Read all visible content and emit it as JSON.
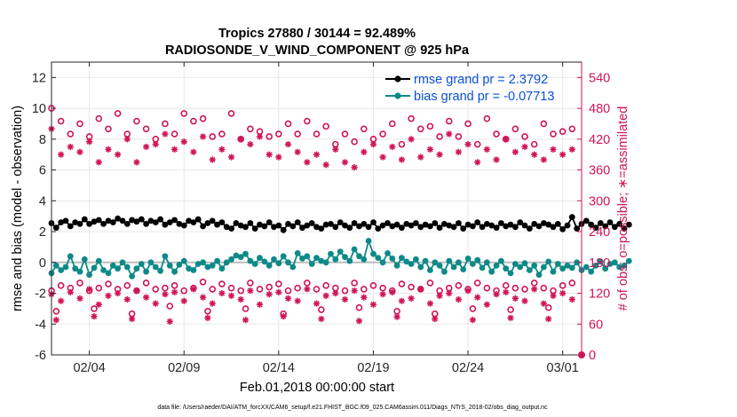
{
  "colors": {
    "rmse": "#000000",
    "bias": "#0d8a88",
    "obs": "#d01458",
    "legend_text": "#0a4fd6",
    "zero_line": "#bdbdbd",
    "grid": "#e8e8e8"
  },
  "chart_data": {
    "type": "line",
    "title": "Tropics 27880 / 30144 = 92.489%",
    "subtitle": "RADIOSONDE_V_WIND_COMPONENT @ 925 hPa",
    "xlabel": "Feb.01,2018 00:00:00 start",
    "ylabel_left": "rmse and bias (model - observation)",
    "ylabel_right": "# of obs: o=possible; ∗=assimilated",
    "footnote": "data file: /Users/raeder/DAI/ATM_forcXX/CAM6_setup/f.e21.FHIST_BGC.f09_025.CAM6assim.011/Diags_NTrS_2018-02/obs_diag_output.nc",
    "xlim": [
      1,
      29
    ],
    "ylim_left": [
      -6,
      13
    ],
    "ylim_right": [
      0,
      570
    ],
    "x_ticks": [
      3,
      8,
      13,
      18,
      23,
      28
    ],
    "x_tick_labels": [
      "02/04",
      "02/09",
      "02/14",
      "02/19",
      "02/24",
      "03/01"
    ],
    "y_left_ticks": [
      -6,
      -4,
      -2,
      0,
      2,
      4,
      6,
      8,
      10,
      12
    ],
    "y_left_tick_labels": [
      "-6",
      "-4",
      "-2",
      "0",
      "2",
      "4",
      "6",
      "8",
      "10",
      "12"
    ],
    "y_right_ticks": [
      0,
      60,
      120,
      180,
      240,
      300,
      360,
      420,
      480,
      540
    ],
    "y_right_tick_labels": [
      "0",
      "60",
      "120",
      "180",
      "240",
      "300",
      "360",
      "420",
      "480",
      "540"
    ],
    "grid": true,
    "legend": {
      "location": "top-right",
      "entries": [
        "rmse grand pr = 2.3792",
        "bias grand pr = -0.07713"
      ]
    },
    "series": [
      {
        "name": "rmse",
        "axis": "left",
        "marker": "filled-circle",
        "x_start": 1.0,
        "x_step": 0.25,
        "values": [
          2.55,
          2.25,
          2.6,
          2.7,
          2.35,
          2.6,
          2.5,
          2.8,
          2.5,
          2.65,
          2.75,
          2.5,
          2.7,
          2.6,
          2.85,
          2.7,
          2.5,
          2.75,
          2.65,
          2.8,
          2.5,
          2.7,
          2.6,
          2.8,
          2.45,
          2.6,
          2.75,
          2.5,
          2.4,
          2.7,
          2.6,
          2.8,
          2.35,
          2.55,
          2.7,
          2.45,
          2.6,
          2.3,
          2.2,
          2.55,
          2.4,
          2.3,
          2.55,
          2.2,
          2.45,
          2.35,
          2.6,
          2.3,
          2.4,
          2.1,
          2.5,
          2.35,
          2.6,
          2.25,
          2.4,
          2.55,
          2.3,
          2.2,
          2.45,
          2.5,
          2.3,
          2.6,
          2.4,
          2.25,
          2.55,
          2.35,
          2.5,
          2.3,
          2.6,
          2.2,
          2.4,
          2.55,
          2.35,
          2.45,
          2.25,
          2.5,
          2.4,
          2.55,
          2.3,
          2.45,
          2.35,
          2.55,
          2.25,
          2.5,
          2.4,
          2.3,
          2.55,
          2.2,
          2.45,
          2.35,
          2.6,
          2.3,
          2.5,
          2.4,
          2.25,
          2.55,
          2.35,
          2.45,
          2.3,
          2.6,
          2.4,
          2.2,
          2.5,
          2.35,
          2.55,
          2.45,
          2.3,
          2.5,
          2.15,
          2.4,
          2.95,
          2.2,
          2.5,
          2.7,
          2.45,
          2.25,
          2.55,
          2.35,
          2.6,
          2.3,
          2.5,
          2.2,
          2.45
        ]
      },
      {
        "name": "bias",
        "axis": "left",
        "marker": "filled-circle",
        "x_start": 1.0,
        "x_step": 0.25,
        "values": [
          -0.7,
          -0.2,
          -0.5,
          -0.3,
          0.4,
          -0.4,
          -0.6,
          0.2,
          -0.8,
          -0.35,
          0.1,
          -0.5,
          -0.7,
          -0.2,
          -0.4,
          0.0,
          -0.3,
          -0.9,
          -0.4,
          -0.1,
          -0.6,
          0.0,
          -0.3,
          -0.55,
          0.4,
          -0.2,
          -0.6,
          -0.15,
          0.1,
          -0.4,
          -0.5,
          -0.1,
          0.0,
          -0.3,
          -0.2,
          0.1,
          -0.4,
          0.0,
          0.2,
          0.45,
          0.35,
          0.55,
          0.1,
          -0.1,
          0.3,
          0.05,
          -0.2,
          0.2,
          -0.05,
          0.4,
          0.0,
          -0.3,
          0.6,
          0.25,
          0.4,
          -0.1,
          0.3,
          0.1,
          0.0,
          0.55,
          0.2,
          0.7,
          0.35,
          0.1,
          0.85,
          0.4,
          0.2,
          1.4,
          0.55,
          0.3,
          0.0,
          0.6,
          0.25,
          -0.2,
          0.3,
          0.05,
          -0.1,
          0.2,
          -0.3,
          0.1,
          -0.5,
          0.0,
          -0.2,
          -0.6,
          0.1,
          -0.3,
          0.0,
          -0.45,
          0.25,
          -0.1,
          0.15,
          -0.35,
          0.0,
          -0.6,
          -0.2,
          0.1,
          -0.4,
          -0.7,
          -0.1,
          -0.3,
          -0.05,
          -0.5,
          -0.2,
          -0.8,
          -0.3,
          0.05,
          -0.6,
          -0.1,
          -0.4,
          -0.2,
          -0.35,
          0.0,
          -0.5,
          -0.3,
          -0.6,
          -0.2,
          0.05,
          -0.4,
          -0.1,
          0.0,
          -0.3,
          -0.2,
          0.1
        ]
      },
      {
        "name": "possible (upper)",
        "axis": "right",
        "marker": "open-circle",
        "x": [
          1,
          1.5,
          2,
          2.5,
          3,
          3.5,
          4,
          4.5,
          5,
          5.5,
          6,
          6.5,
          7,
          7.5,
          8,
          8.5,
          9,
          9.5,
          10,
          10.5,
          11,
          11.5,
          12,
          12.5,
          13,
          13.5,
          14,
          14.5,
          15,
          15.5,
          16,
          16.5,
          17,
          17.5,
          18,
          18.5,
          19,
          19.5,
          20,
          20.5,
          21,
          21.5,
          22,
          22.5,
          23,
          23.5,
          24,
          24.5,
          25,
          25.5,
          26,
          26.5,
          27,
          27.5,
          28,
          28.5
        ],
        "values": [
          480,
          455,
          430,
          450,
          425,
          460,
          440,
          470,
          430,
          455,
          440,
          420,
          450,
          430,
          470,
          455,
          460,
          425,
          430,
          470,
          420,
          440,
          435,
          425,
          430,
          450,
          430,
          455,
          430,
          445,
          410,
          430,
          415,
          440,
          420,
          430,
          450,
          410,
          460,
          440,
          445,
          425,
          455,
          425,
          450,
          410,
          460,
          430,
          420,
          440,
          425,
          410,
          450,
          430,
          435,
          440
        ]
      },
      {
        "name": "assimilated (upper)",
        "axis": "right",
        "marker": "asterisk",
        "x": [
          1,
          1.5,
          2,
          2.5,
          3,
          3.5,
          4,
          4.5,
          5,
          5.5,
          6,
          6.5,
          7,
          7.5,
          8,
          8.5,
          9,
          9.5,
          10,
          10.5,
          11,
          11.5,
          12,
          12.5,
          13,
          13.5,
          14,
          14.5,
          15,
          15.5,
          16,
          16.5,
          17,
          17.5,
          18,
          18.5,
          19,
          19.5,
          20,
          20.5,
          21,
          21.5,
          22,
          22.5,
          23,
          23.5,
          24,
          24.5,
          25,
          25.5,
          26,
          26.5,
          27,
          27.5,
          28,
          28.5
        ],
        "values": [
          440,
          390,
          405,
          395,
          415,
          375,
          400,
          390,
          420,
          375,
          405,
          410,
          430,
          400,
          415,
          395,
          425,
          380,
          400,
          385,
          420,
          410,
          425,
          390,
          385,
          410,
          395,
          375,
          390,
          370,
          400,
          375,
          365,
          395,
          410,
          385,
          405,
          380,
          420,
          385,
          400,
          390,
          430,
          395,
          410,
          375,
          400,
          380,
          420,
          395,
          405,
          390,
          380,
          400,
          390,
          400
        ]
      },
      {
        "name": "possible (lower)",
        "axis": "right",
        "marker": "open-circle",
        "x": [
          1,
          1.5,
          2,
          2.5,
          3,
          3.5,
          4,
          4.5,
          5,
          5.5,
          6,
          6.5,
          7,
          7.5,
          8,
          8.5,
          9,
          9.5,
          10,
          10.5,
          11,
          11.5,
          12,
          12.5,
          13,
          13.5,
          14,
          14.5,
          15,
          15.5,
          16,
          16.5,
          17,
          17.5,
          18,
          18.5,
          19,
          19.5,
          20,
          20.5,
          21,
          21.5,
          22,
          22.5,
          23,
          23.5,
          24,
          24.5,
          25,
          25.5,
          26,
          26.5,
          27,
          27.5,
          28,
          28.5,
          1.25,
          3.25,
          5.25,
          7.25,
          9.25,
          11.25,
          13.25,
          15.25,
          17.25,
          19.25,
          21.25,
          23.25,
          25.25,
          27.25
        ],
        "values": [
          125,
          135,
          130,
          140,
          125,
          130,
          138,
          128,
          135,
          125,
          140,
          128,
          130,
          135,
          125,
          130,
          142,
          128,
          138,
          130,
          125,
          140,
          128,
          132,
          138,
          125,
          130,
          140,
          128,
          135,
          130,
          125,
          140,
          128,
          135,
          130,
          125,
          138,
          132,
          128,
          140,
          125,
          130,
          135,
          128,
          140,
          130,
          125,
          135,
          130,
          128,
          140,
          130,
          125,
          135,
          140,
          85,
          90,
          80,
          95,
          85,
          90,
          80,
          88,
          92,
          85,
          80,
          90,
          88,
          92
        ]
      },
      {
        "name": "assimilated (lower)",
        "axis": "right",
        "marker": "asterisk",
        "x": [
          1,
          1.5,
          2,
          2.5,
          3,
          3.5,
          4,
          4.5,
          5,
          5.5,
          6,
          6.5,
          7,
          7.5,
          8,
          8.5,
          9,
          9.5,
          10,
          10.5,
          11,
          11.5,
          12,
          12.5,
          13,
          13.5,
          14,
          14.5,
          15,
          15.5,
          16,
          16.5,
          17,
          17.5,
          18,
          18.5,
          19,
          19.5,
          20,
          20.5,
          21,
          21.5,
          22,
          22.5,
          23,
          23.5,
          24,
          24.5,
          25,
          25.5,
          26,
          26.5,
          27,
          27.5,
          28,
          28.5,
          1.25,
          3.25,
          5.25,
          7.25,
          9.25,
          11.25,
          13.25,
          15.25,
          17.25,
          19.25,
          21.25,
          23.25,
          25.25,
          27.25
        ],
        "values": [
          118,
          105,
          122,
          110,
          128,
          98,
          115,
          120,
          108,
          125,
          112,
          100,
          118,
          122,
          105,
          128,
          112,
          100,
          120,
          115,
          108,
          125,
          98,
          118,
          122,
          110,
          105,
          128,
          100,
          115,
          120,
          108,
          125,
          112,
          98,
          118,
          122,
          105,
          110,
          128,
          100,
          115,
          120,
          108,
          125,
          112,
          98,
          118,
          122,
          110,
          105,
          128,
          100,
          115,
          120,
          108,
          68,
          75,
          70,
          65,
          72,
          68,
          75,
          70,
          66,
          74,
          70,
          68,
          72,
          70
        ]
      }
    ]
  }
}
